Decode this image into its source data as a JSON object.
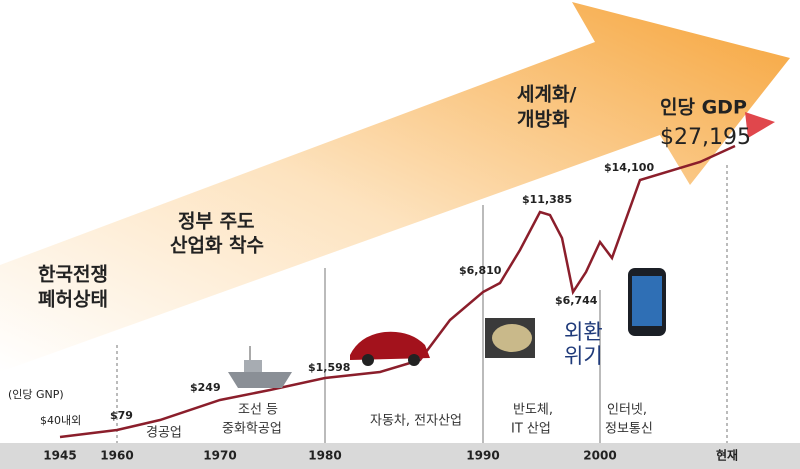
{
  "stages": [
    [
      "한국전쟁",
      "폐허상태"
    ],
    [
      "정부 주도",
      "산업화 착수"
    ],
    [
      "세계화/",
      "개방화"
    ]
  ],
  "current_gdp": [
    "인당 GDP",
    "$27,195"
  ],
  "gnp_note": "(인당 GNP)",
  "milestones": [
    "$40내외",
    "$79",
    "$249",
    "$1,598",
    "$6,810",
    "$11,385",
    "$6,744",
    "$14,100"
  ],
  "industries": [
    [
      "경공업"
    ],
    [
      "조선 등",
      "중화학공업"
    ],
    [
      "자동차, 전자산업"
    ],
    [
      "반도체,",
      "IT 산업"
    ],
    [
      "인터넷,",
      "정보통신"
    ]
  ],
  "crisis": [
    "외환",
    "위기"
  ],
  "axis_labels": [
    "1945",
    "1960",
    "1970",
    "1980",
    "1990",
    "2000",
    "현재"
  ]
}
